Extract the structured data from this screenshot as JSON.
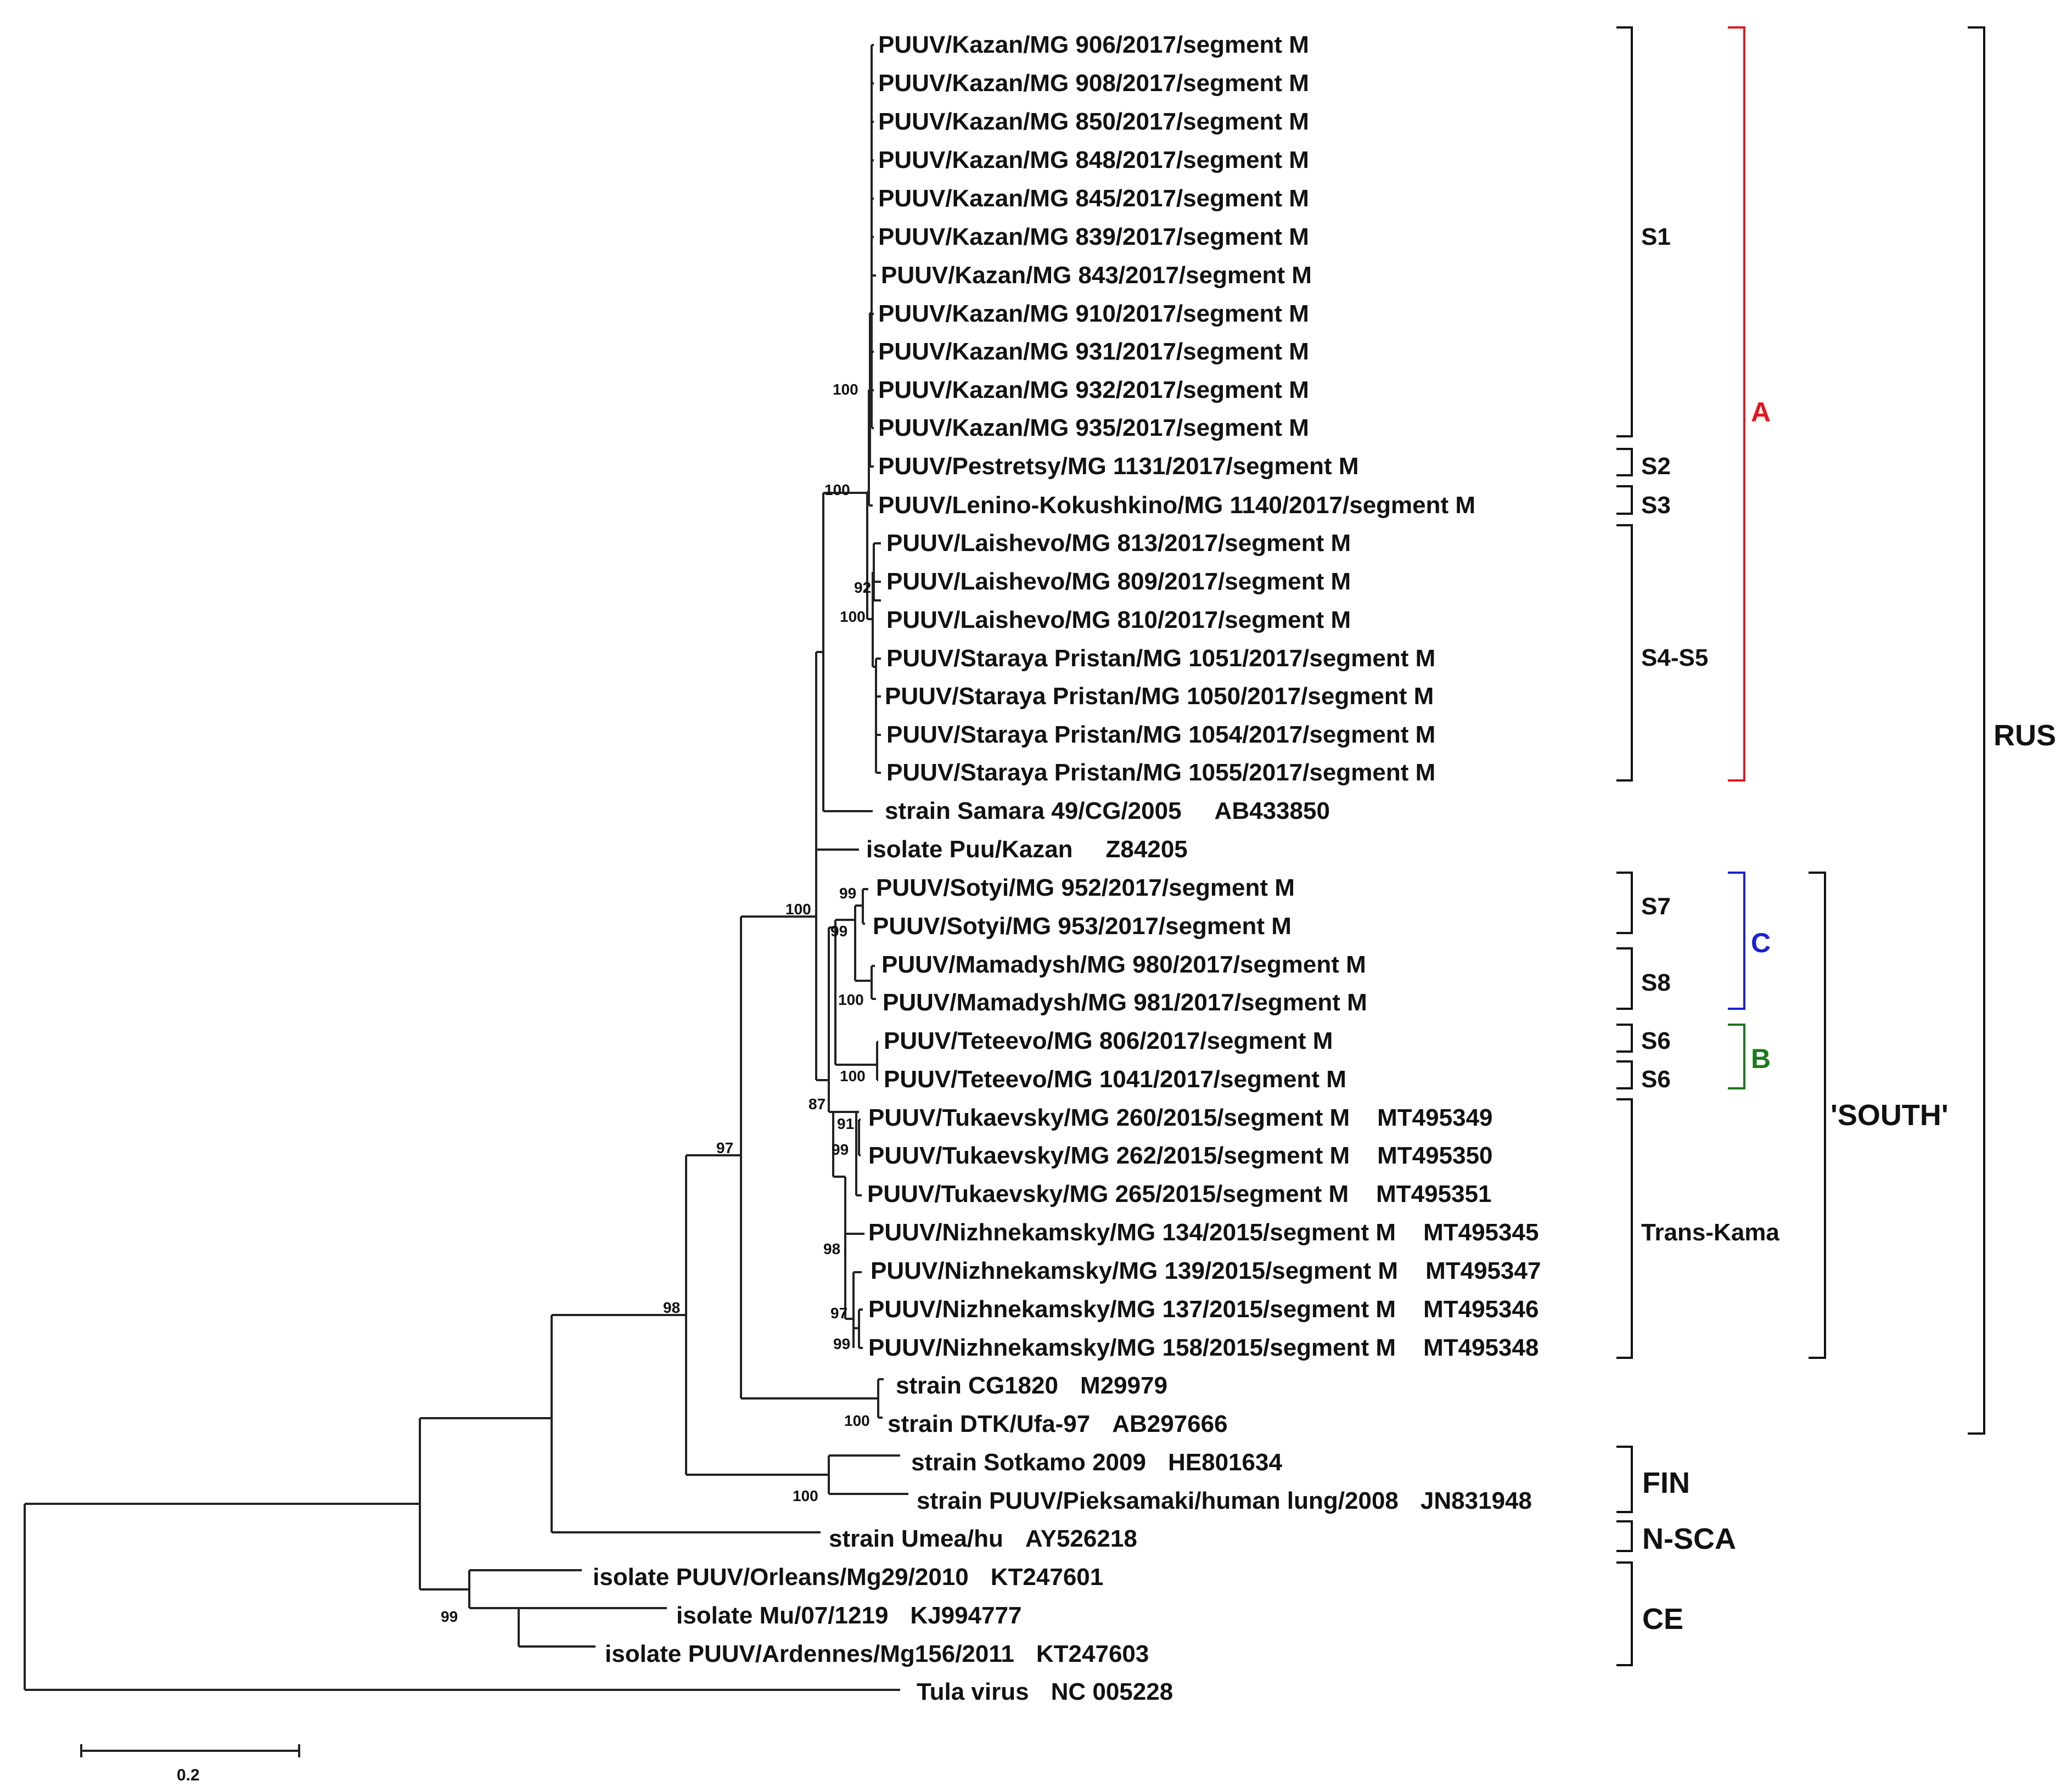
{
  "figure": {
    "title": "",
    "colors": {
      "branch": "#222222",
      "text": "#111111",
      "clade_A": "#e3171b",
      "clade_B": "#1a7a1a",
      "clade_C": "#1a22d6",
      "black": "#111111"
    }
  },
  "leaves": [
    {
      "name": "PUUV/Kazan/MG 906/2017/segment M",
      "accession": ""
    },
    {
      "name": "PUUV/Kazan/MG 908/2017/segment M",
      "accession": ""
    },
    {
      "name": "PUUV/Kazan/MG 850/2017/segment M",
      "accession": ""
    },
    {
      "name": "PUUV/Kazan/MG 848/2017/segment M",
      "accession": ""
    },
    {
      "name": "PUUV/Kazan/MG 845/2017/segment M",
      "accession": ""
    },
    {
      "name": "PUUV/Kazan/MG 839/2017/segment M",
      "accession": ""
    },
    {
      "name": "PUUV/Kazan/MG 843/2017/segment M",
      "accession": ""
    },
    {
      "name": "PUUV/Kazan/MG 910/2017/segment M",
      "accession": ""
    },
    {
      "name": "PUUV/Kazan/MG 931/2017/segment M",
      "accession": ""
    },
    {
      "name": "PUUV/Kazan/MG 932/2017/segment M",
      "accession": ""
    },
    {
      "name": "PUUV/Kazan/MG 935/2017/segment M",
      "accession": ""
    },
    {
      "name": "PUUV/Pestretsy/MG 1131/2017/segment M",
      "accession": ""
    },
    {
      "name": "PUUV/Lenino-Kokushkino/MG 1140/2017/segment M",
      "accession": ""
    },
    {
      "name": "PUUV/Laishevo/MG 813/2017/segment M",
      "accession": ""
    },
    {
      "name": "PUUV/Laishevo/MG 809/2017/segment M",
      "accession": ""
    },
    {
      "name": "PUUV/Laishevo/MG 810/2017/segment M",
      "accession": ""
    },
    {
      "name": "PUUV/Staraya Pristan/MG 1051/2017/segment M",
      "accession": ""
    },
    {
      "name": "PUUV/Staraya Pristan/MG 1050/2017/segment M",
      "accession": ""
    },
    {
      "name": "PUUV/Staraya Pristan/MG 1054/2017/segment M",
      "accession": ""
    },
    {
      "name": "PUUV/Staraya Pristan/MG 1055/2017/segment M",
      "accession": ""
    },
    {
      "name": "strain Samara 49/CG/2005",
      "accession": "AB433850"
    },
    {
      "name": "isolate Puu/Kazan",
      "accession": "Z84205"
    },
    {
      "name": "PUUV/Sotyi/MG 952/2017/segment M",
      "accession": ""
    },
    {
      "name": "PUUV/Sotyi/MG 953/2017/segment M",
      "accession": ""
    },
    {
      "name": "PUUV/Mamadysh/MG 980/2017/segment M",
      "accession": ""
    },
    {
      "name": "PUUV/Mamadysh/MG 981/2017/segment M",
      "accession": ""
    },
    {
      "name": "PUUV/Teteevo/MG 806/2017/segment M",
      "accession": ""
    },
    {
      "name": "PUUV/Teteevo/MG 1041/2017/segment M",
      "accession": ""
    },
    {
      "name": "PUUV/Tukaevsky/MG 260/2015/segment M",
      "accession": "MT495349"
    },
    {
      "name": "PUUV/Tukaevsky/MG 262/2015/segment M",
      "accession": "MT495350"
    },
    {
      "name": "PUUV/Tukaevsky/MG 265/2015/segment M",
      "accession": "MT495351"
    },
    {
      "name": "PUUV/Nizhnekamsky/MG 134/2015/segment M",
      "accession": "MT495345"
    },
    {
      "name": "PUUV/Nizhnekamsky/MG 139/2015/segment M",
      "accession": "MT495347"
    },
    {
      "name": "PUUV/Nizhnekamsky/MG 137/2015/segment M",
      "accession": "MT495346"
    },
    {
      "name": "PUUV/Nizhnekamsky/MG 158/2015/segment M",
      "accession": "MT495348"
    },
    {
      "name": "strain CG1820",
      "accession": "M29979"
    },
    {
      "name": "strain DTK/Ufa-97",
      "accession": "AB297666"
    },
    {
      "name": "strain Sotkamo 2009",
      "accession": "HE801634"
    },
    {
      "name": "strain PUUV/Pieksamaki/human lung/2008",
      "accession": "JN831948"
    },
    {
      "name": "strain Umea/hu",
      "accession": "AY526218"
    },
    {
      "name": "isolate PUUV/Orleans/Mg29/2010",
      "accession": "KT247601"
    },
    {
      "name": "isolate Mu/07/1219",
      "accession": "KJ994777"
    },
    {
      "name": "isolate PUUV/Ardennes/Mg156/2011",
      "accession": "KT247603"
    },
    {
      "name": "Tula virus",
      "accession": "NC 005228"
    }
  ],
  "bootstrap": [
    {
      "label": "100"
    },
    {
      "label": "100"
    },
    {
      "label": "92"
    },
    {
      "label": "100"
    },
    {
      "label": "100"
    },
    {
      "label": "99"
    },
    {
      "label": "99"
    },
    {
      "label": "100"
    },
    {
      "label": "100"
    },
    {
      "label": "87"
    },
    {
      "label": "91"
    },
    {
      "label": "99"
    },
    {
      "label": "98"
    },
    {
      "label": "97"
    },
    {
      "label": "99"
    },
    {
      "label": "97"
    },
    {
      "label": "98"
    },
    {
      "label": "100"
    },
    {
      "label": "100"
    },
    {
      "label": "99"
    }
  ],
  "subgroups": {
    "S1": "S1",
    "S2": "S2",
    "S3": "S3",
    "S4S5": "S4-S5",
    "S7": "S7",
    "S8": "S8",
    "S6a": "S6",
    "S6b": "S6",
    "TransKama": "Trans-Kama"
  },
  "clades": {
    "A": "A",
    "B": "B",
    "C": "C"
  },
  "lineages": {
    "RUS": "RUS",
    "SOUTH": "'SOUTH'",
    "FIN": "FIN",
    "NSCA": "N-SCA",
    "CE": "CE"
  },
  "scale_bar": {
    "label": "0.2",
    "value": 0.2
  }
}
